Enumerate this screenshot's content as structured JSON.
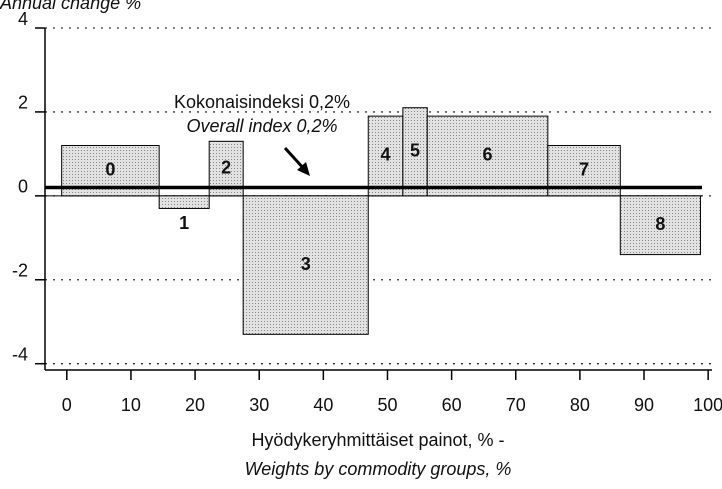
{
  "chart_data": {
    "type": "variable-width-bar",
    "title": "Annual change %",
    "xlabel": "Hyödykeryhmittäiset painot, % -",
    "xlabel_en": "Weights by commodity groups, %",
    "annotation": "Kokonaisindeksi  0,2%",
    "annotation_en": "Overall index 0,2%",
    "overall_index": 0.2,
    "categories": [
      "0",
      "1",
      "2",
      "3",
      "4",
      "5",
      "6",
      "7",
      "8"
    ],
    "bins": [
      -0.8,
      14.4,
      22.2,
      27.5,
      47,
      52.4,
      56.2,
      75,
      86.3,
      98.8
    ],
    "values": [
      1.2,
      -0.3,
      1.3,
      -3.3,
      1.9,
      2.1,
      1.9,
      1.2,
      -1.4
    ],
    "color": "#d4d4d4",
    "xlim": [
      -3.4,
      100.6
    ],
    "ylim": [
      -4.15,
      4
    ],
    "xticks": [
      0,
      10,
      20,
      30,
      40,
      50,
      60,
      70,
      80,
      90,
      100
    ],
    "yticks": [
      -4,
      -2,
      0,
      2,
      4
    ],
    "grid": true
  }
}
